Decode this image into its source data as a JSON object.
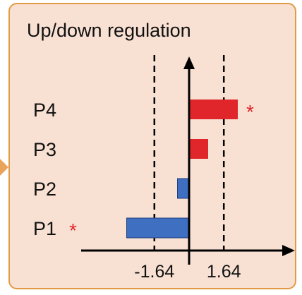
{
  "chart_data": {
    "type": "bar",
    "orientation": "horizontal",
    "title": "Up/down regulation",
    "categories": [
      "P4",
      "P3",
      "P2",
      "P1"
    ],
    "values": [
      2.3,
      0.9,
      -0.55,
      -2.95
    ],
    "significant": [
      true,
      false,
      false,
      true
    ],
    "significance_marker": "*",
    "threshold_lines": [
      -1.64,
      1.64
    ],
    "xticks": [
      "-1.64",
      "1.64"
    ],
    "xlim": [
      -3.1,
      2.9
    ],
    "grid": false,
    "colors": {
      "up": "#e0262b",
      "down": "#3f6fc1",
      "marker": "#e0262b",
      "border": "#e39a45",
      "background": "#f8e1d3"
    }
  }
}
